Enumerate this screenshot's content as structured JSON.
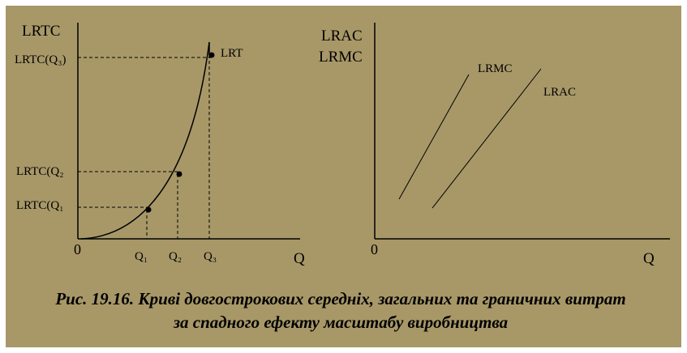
{
  "left_panel": {
    "y_axis_label": "LRTC",
    "origin": "0",
    "x_axis_label": "Q",
    "curve_label": "LRT",
    "y_labels": [
      "LRTC(Q₃)",
      "LRTC(Q₂",
      "LRTC(Q₁"
    ],
    "x_labels": [
      "Q₁",
      "Q₂",
      "Q₃"
    ]
  },
  "right_panel": {
    "y_axis_labels": [
      "LRAC",
      "LRMC"
    ],
    "origin": "0",
    "x_axis_label": "Q",
    "line_labels": [
      "LRMC",
      "LRAC"
    ]
  },
  "caption": [
    "Рис. 19.16. Криві довгострокових середніх, загальних та граничних витрат",
    "за спадного ефекту масштабу виробництва"
  ]
}
